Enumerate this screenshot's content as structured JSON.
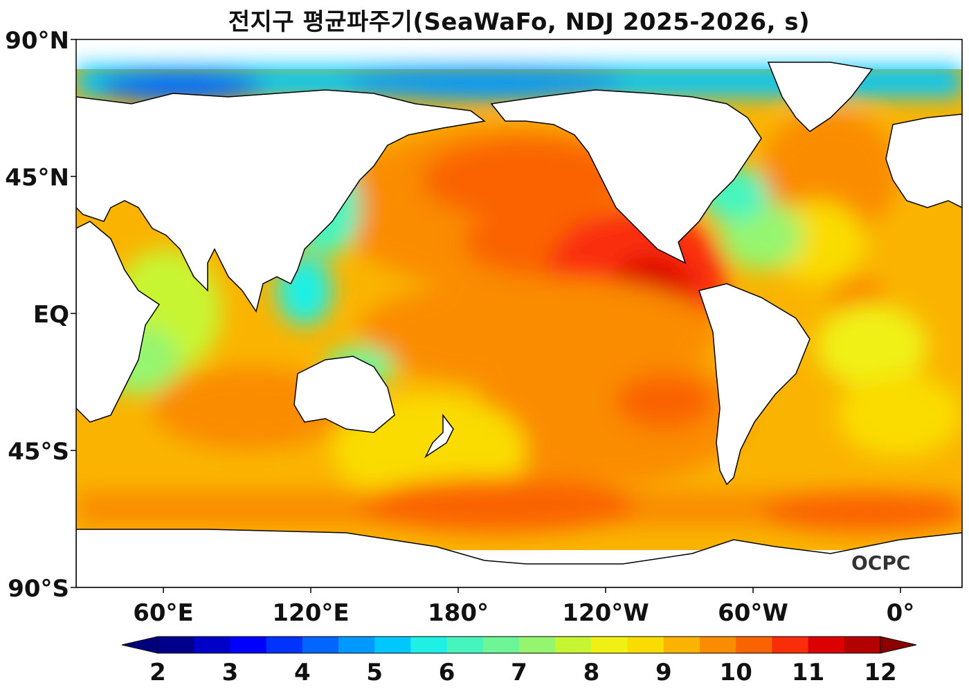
{
  "title": "전지구 평균파주기(SeaWaFo, NDJ 2025-2026, s)",
  "map": {
    "lat_labels": [
      "90°N",
      "45°N",
      "EQ",
      "45°S",
      "90°S"
    ],
    "lon_labels": [
      "60°E",
      "120°E",
      "180°",
      "120°W",
      "60°W",
      "0°"
    ],
    "watermark": "OCPC"
  },
  "colorbar": {
    "tick_labels": [
      "2",
      "3",
      "4",
      "5",
      "6",
      "7",
      "8",
      "9",
      "10",
      "11",
      "12"
    ],
    "colors": [
      "#00008b",
      "#0000c8",
      "#0000ff",
      "#0033ff",
      "#0066ff",
      "#0099ff",
      "#00c8ff",
      "#1ef0e6",
      "#46f5be",
      "#6ef596",
      "#96f56e",
      "#c8f532",
      "#f0f014",
      "#fadc00",
      "#fab400",
      "#fa8c00",
      "#fa6400",
      "#fa2d0a",
      "#dc0000",
      "#b40000"
    ],
    "extend_low_color": "#00007d",
    "extend_high_color": "#8c0000"
  }
}
